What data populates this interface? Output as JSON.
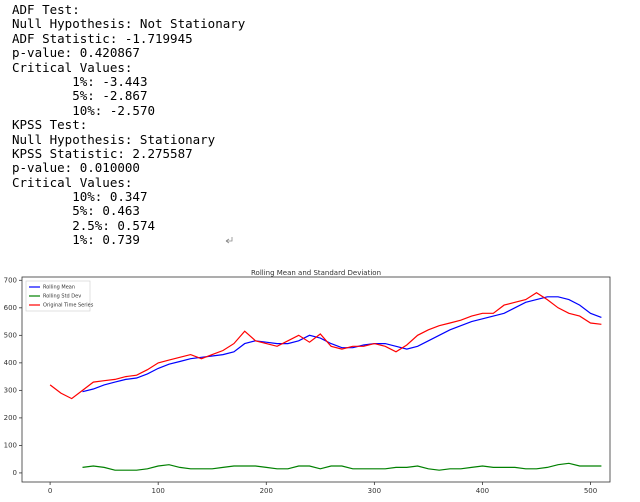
{
  "console": {
    "lines": [
      "ADF Test:",
      "Null Hypothesis: Not Stationary",
      "ADF Statistic: -1.719945",
      "p-value: 0.420867",
      "Critical Values:",
      "\t1%: -3.443",
      "\t5%: -2.867",
      "\t10%: -2.570",
      "KPSS Test:",
      "Null Hypothesis: Stationary",
      "KPSS Statistic: 2.275587",
      "p-value: 0.010000",
      "Critical Values:",
      "\t10%: 0.347",
      "\t5%: 0.463",
      "\t2.5%: 0.574",
      "\t1%: 0.739"
    ]
  },
  "chart_data": {
    "type": "line",
    "title": "Rolling Mean and Standard Deviation",
    "x": [
      0,
      10,
      20,
      30,
      40,
      50,
      60,
      70,
      80,
      90,
      100,
      110,
      120,
      130,
      140,
      150,
      160,
      170,
      180,
      190,
      200,
      210,
      220,
      230,
      240,
      250,
      260,
      270,
      280,
      290,
      300,
      310,
      320,
      330,
      340,
      350,
      360,
      370,
      380,
      390,
      400,
      410,
      420,
      430,
      440,
      450,
      460,
      470,
      480,
      490,
      500,
      510
    ],
    "series": [
      {
        "name": "Rolling Mean",
        "color": "#0000ff",
        "values": [
          null,
          null,
          null,
          295,
          305,
          320,
          330,
          340,
          345,
          360,
          380,
          395,
          405,
          415,
          420,
          425,
          430,
          440,
          470,
          480,
          475,
          470,
          470,
          480,
          500,
          490,
          470,
          455,
          455,
          465,
          470,
          470,
          460,
          450,
          460,
          480,
          500,
          520,
          535,
          550,
          560,
          570,
          580,
          600,
          620,
          630,
          640,
          640,
          630,
          610,
          580,
          565
        ]
      },
      {
        "name": "Rolling Std Dev",
        "color": "#008000",
        "values": [
          null,
          null,
          null,
          20,
          25,
          20,
          10,
          10,
          10,
          15,
          25,
          30,
          20,
          15,
          15,
          15,
          20,
          25,
          25,
          25,
          20,
          15,
          15,
          25,
          25,
          15,
          25,
          25,
          15,
          15,
          15,
          15,
          20,
          20,
          25,
          15,
          10,
          15,
          15,
          20,
          25,
          20,
          20,
          20,
          15,
          15,
          20,
          30,
          35,
          25,
          25,
          25
        ]
      },
      {
        "name": "Original Time Series",
        "color": "#ff0000",
        "values": [
          320,
          290,
          270,
          300,
          330,
          335,
          340,
          350,
          355,
          375,
          400,
          410,
          420,
          430,
          415,
          430,
          445,
          470,
          515,
          480,
          470,
          460,
          480,
          500,
          475,
          505,
          460,
          450,
          460,
          460,
          470,
          460,
          440,
          465,
          500,
          520,
          535,
          545,
          555,
          570,
          580,
          580,
          610,
          620,
          630,
          655,
          630,
          600,
          580,
          570,
          545,
          540
        ]
      }
    ],
    "xlim": [
      -26,
      518
    ],
    "ylim": [
      -33,
      712
    ],
    "xticks": [
      0,
      100,
      200,
      300,
      400,
      500
    ],
    "yticks": [
      0,
      100,
      200,
      300,
      400,
      500,
      600,
      700
    ],
    "legend": "upper left"
  }
}
